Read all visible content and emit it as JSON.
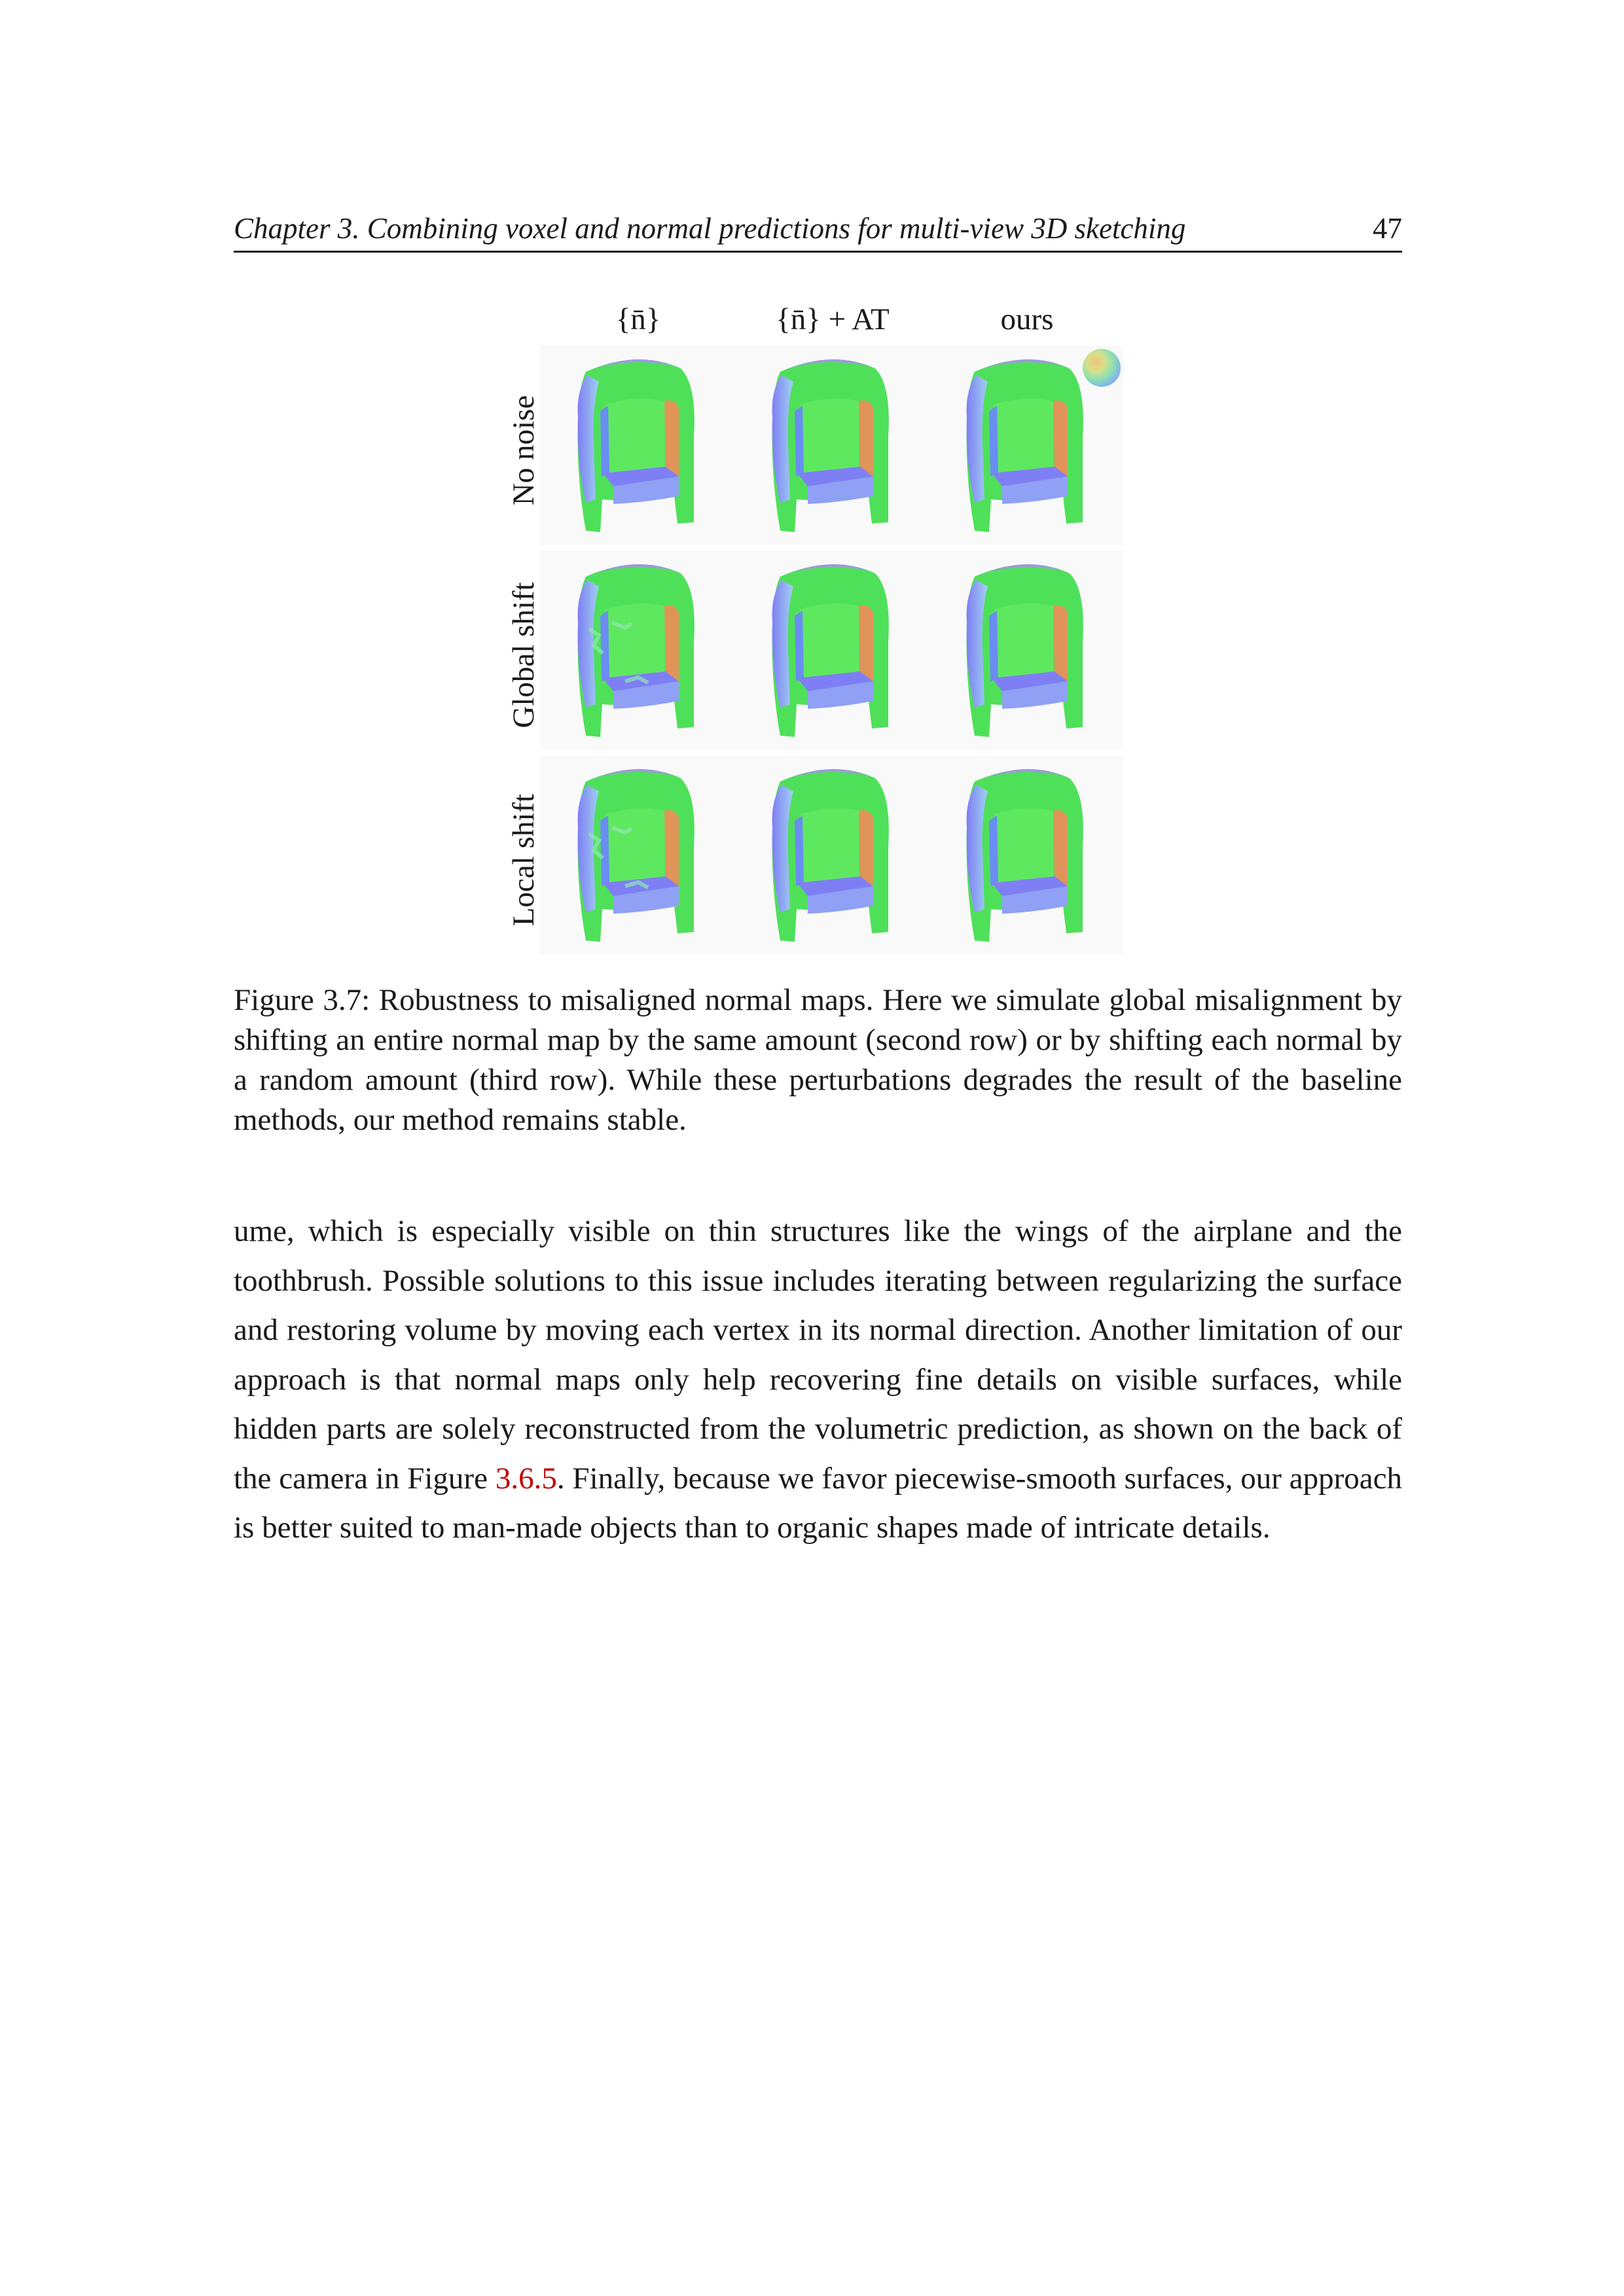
{
  "header": {
    "title": "Chapter 3.  Combining voxel and normal predictions for multi-view 3D sketching",
    "page_number": "47"
  },
  "figure": {
    "column_headers": [
      "{n̄}",
      "{n̄} + AT",
      "ours"
    ],
    "row_labels": [
      "No noise",
      "Global shift",
      "Local shift"
    ],
    "caption": "Figure 3.7: Robustness to misaligned normal maps. Here we simulate global misalignment by shifting an entire normal map by the same amount (second row) or by shifting each normal by a random amount (third row). While these perturbations degrades the result of the baseline methods, our method remains stable."
  },
  "body": {
    "text_before_ref": "ume, which is especially visible on thin structures like the wings of the airplane and the toothbrush. Possible solutions to this issue includes iterating between regularizing the surface and restoring volume by moving each vertex in its normal direction. Another limitation of our approach is that normal maps only help recovering fine details on visible surfaces, while hidden parts are solely reconstructed from the volumetric prediction, as shown on the back of the camera in Figure ",
    "ref": "3.6.5",
    "text_after_ref": ". Finally, because we favor piecewise-smooth surfaces, our approach is better suited to man-made objects than to organic shapes made of intricate details."
  },
  "colors": {
    "reference_link": "#c00000",
    "normal_green": "#4fe05a",
    "normal_blue": "#7f7ff5",
    "normal_orange": "#e0945a"
  }
}
